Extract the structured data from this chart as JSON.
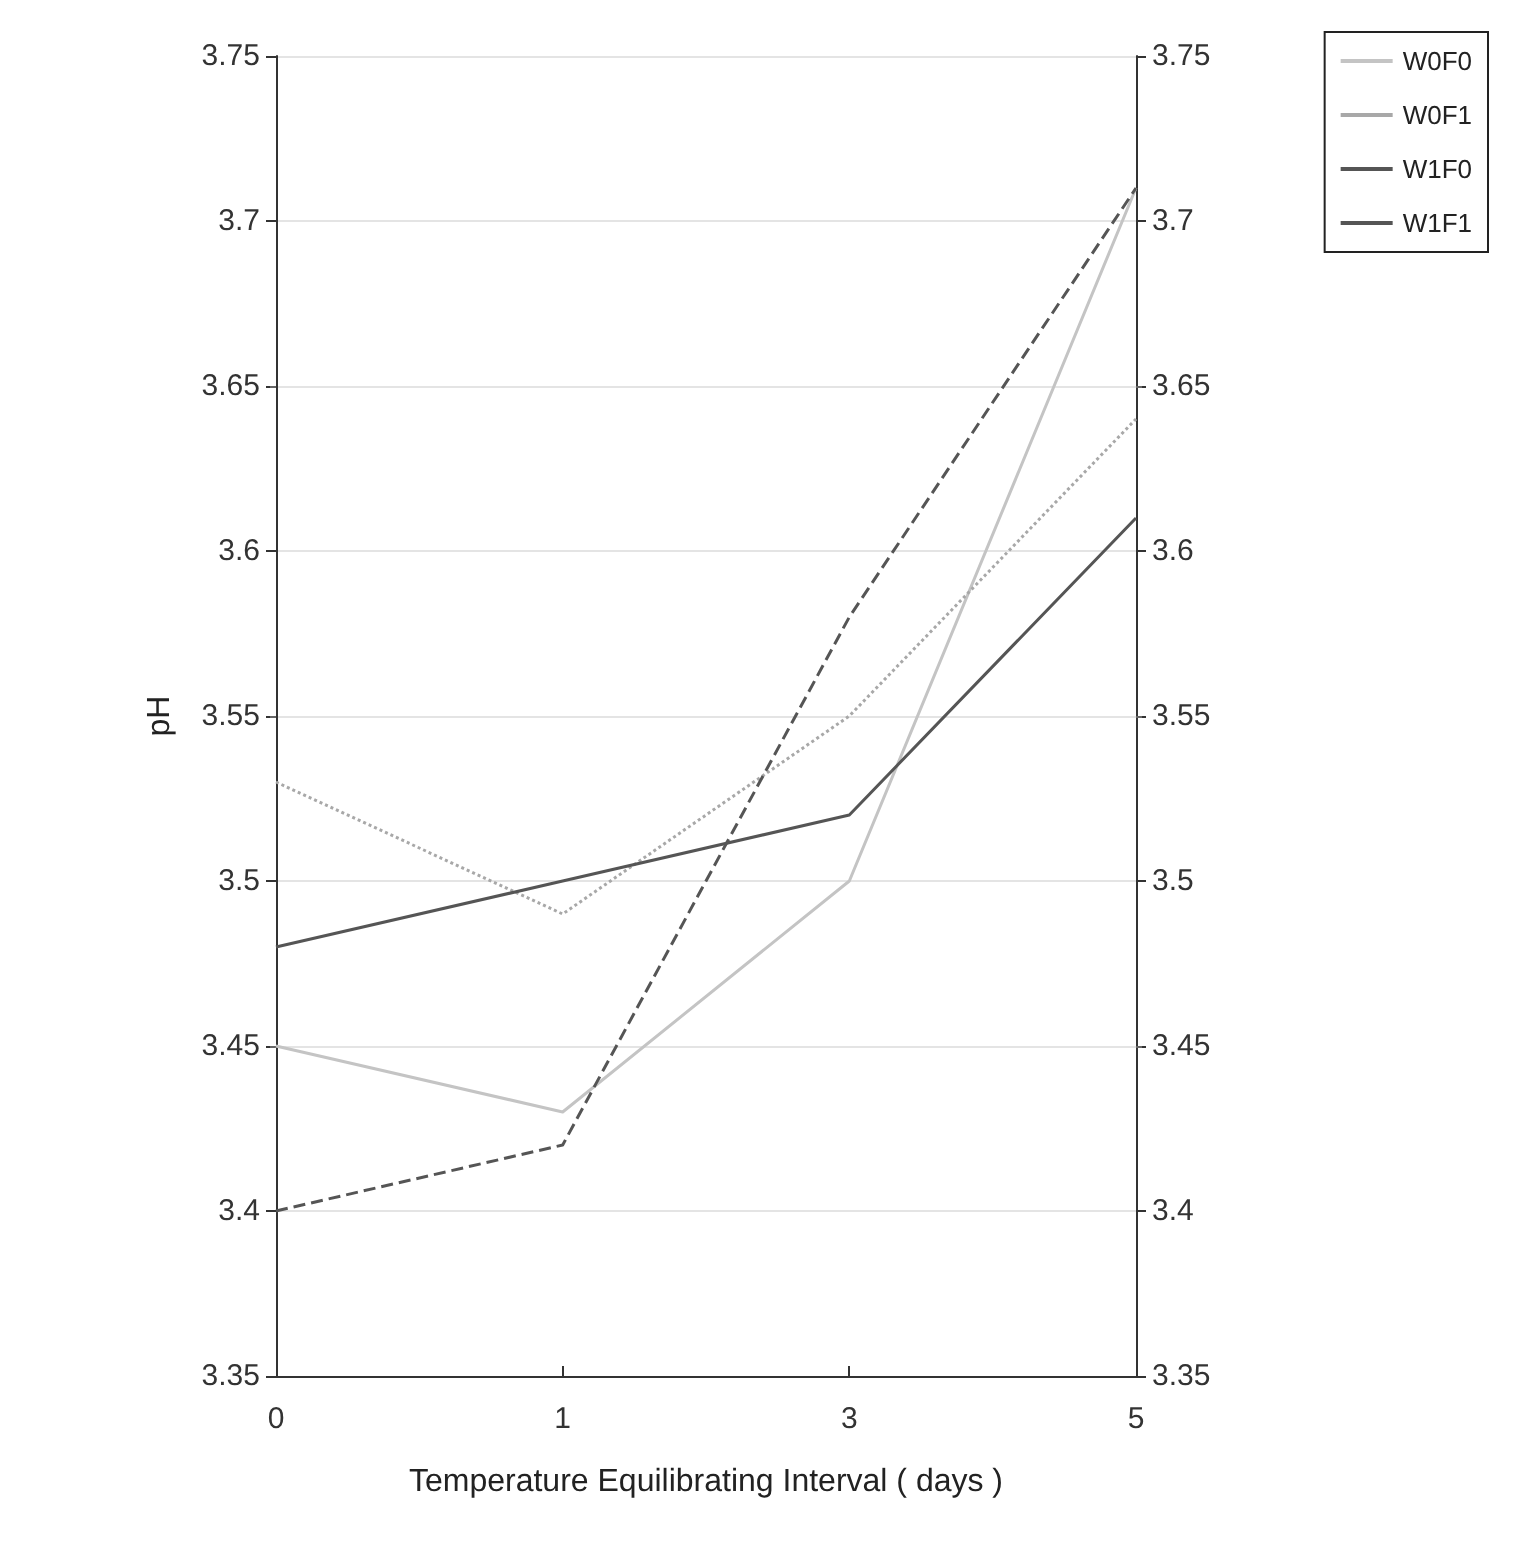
{
  "chart_data": {
    "type": "line",
    "xlabel": "Temperature Equilibrating Interval ( days )",
    "ylabel": "pH",
    "categories": [
      "0",
      "1",
      "3",
      "5"
    ],
    "series": [
      {
        "name": "W0F0",
        "color": "#c4c4c4",
        "line_style": "solid",
        "values": [
          3.45,
          3.43,
          3.5,
          3.71
        ]
      },
      {
        "name": "W0F1",
        "color": "#a8a8a8",
        "line_style": "dotted",
        "values": [
          3.53,
          3.49,
          3.55,
          3.64
        ]
      },
      {
        "name": "W1F0",
        "color": "#555555",
        "line_style": "solid",
        "values": [
          3.48,
          3.5,
          3.52,
          3.61
        ]
      },
      {
        "name": "W1F1",
        "color": "#555555",
        "line_style": "dashed",
        "values": [
          3.4,
          3.42,
          3.58,
          3.71
        ]
      }
    ],
    "ylim": [
      3.35,
      3.75
    ],
    "yticks": [
      3.35,
      3.4,
      3.45,
      3.5,
      3.55,
      3.6,
      3.65,
      3.7,
      3.75
    ],
    "y2lim": [
      3.35,
      3.75
    ],
    "y2ticks": [
      3.35,
      3.4,
      3.45,
      3.5,
      3.55,
      3.6,
      3.65,
      3.7,
      3.75
    ],
    "grid": "y",
    "legend": "top right",
    "marker": "none"
  }
}
